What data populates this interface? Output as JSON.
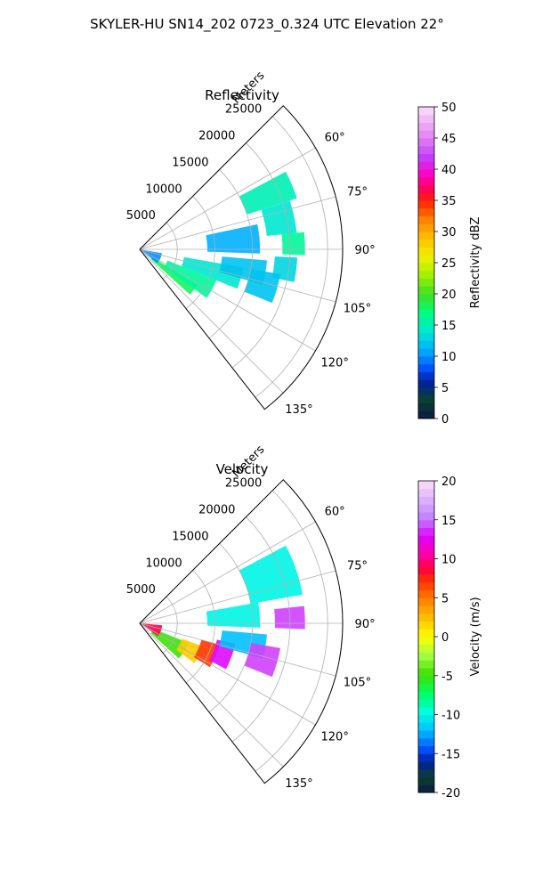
{
  "figure": {
    "suptitle": "SKYLER-HU  SN14_202  0723_0.324 UTC Elevation 22°"
  },
  "chart_data": [
    {
      "type": "polar-ppi",
      "title": "Reflectivity",
      "range_label": "Meters",
      "r_ticks": [
        5000,
        10000,
        15000,
        20000,
        25000
      ],
      "r_max": 27000,
      "theta_range_deg": [
        45,
        142
      ],
      "theta_ticks": [
        "60°",
        "75°",
        "90°",
        "105°",
        "120°",
        "135°"
      ],
      "theta_tick_values": [
        60,
        75,
        90,
        105,
        120,
        135
      ],
      "colorbar": {
        "label": "Reflectivity dBZ",
        "min": 0,
        "max": 50,
        "ticks": [
          0,
          5,
          10,
          15,
          20,
          25,
          30,
          35,
          40,
          45,
          50
        ]
      },
      "echo_regions": [
        {
          "az": [
            122,
            132
          ],
          "r": [
            2000,
            9000
          ],
          "value": 18
        },
        {
          "az": [
            112,
            126
          ],
          "r": [
            4000,
            11000
          ],
          "value": 16
        },
        {
          "az": [
            100,
            112
          ],
          "r": [
            6000,
            14000
          ],
          "value": 14
        },
        {
          "az": [
            95,
            106
          ],
          "r": [
            11000,
            17000
          ],
          "value": 12
        },
        {
          "az": [
            78,
            92
          ],
          "r": [
            9000,
            16000
          ],
          "value": 11
        },
        {
          "az": [
            62,
            72
          ],
          "r": [
            15000,
            22000
          ],
          "value": 15
        },
        {
          "az": [
            72,
            84
          ],
          "r": [
            17000,
            21000
          ],
          "value": 14
        },
        {
          "az": [
            84,
            92
          ],
          "r": [
            19000,
            22000
          ],
          "value": 16
        },
        {
          "az": [
            93,
            102
          ],
          "r": [
            18000,
            21000
          ],
          "value": 13
        },
        {
          "az": [
            100,
            112
          ],
          "r": [
            15000,
            19000
          ],
          "value": 12
        },
        {
          "az": [
            100,
            128
          ],
          "r": [
            0,
            3000
          ],
          "value": 10
        }
      ]
    },
    {
      "type": "polar-ppi",
      "title": "Velocity",
      "range_label": "Meters",
      "r_ticks": [
        5000,
        10000,
        15000,
        20000,
        25000
      ],
      "r_max": 27000,
      "theta_range_deg": [
        45,
        142
      ],
      "theta_ticks": [
        "60°",
        "75°",
        "90°",
        "105°",
        "120°",
        "135°"
      ],
      "theta_tick_values": [
        60,
        75,
        90,
        105,
        120,
        135
      ],
      "colorbar": {
        "label": "Velocity (m/s)",
        "min": -20,
        "max": 20,
        "ticks": [
          -20,
          -15,
          -10,
          -5,
          0,
          5,
          10,
          15,
          20
        ]
      },
      "echo_regions": [
        {
          "az": [
            112,
            132
          ],
          "r": [
            2000,
            7000
          ],
          "value": -5
        },
        {
          "az": [
            110,
            126
          ],
          "r": [
            6000,
            9000
          ],
          "value": 2
        },
        {
          "az": [
            105,
            122
          ],
          "r": [
            8500,
            11000
          ],
          "value": 7
        },
        {
          "az": [
            102,
            118
          ],
          "r": [
            10500,
            13000
          ],
          "value": 13
        },
        {
          "az": [
            95,
            106
          ],
          "r": [
            11000,
            17000
          ],
          "value": -12
        },
        {
          "az": [
            80,
            92
          ],
          "r": [
            9000,
            16000
          ],
          "value": -10
        },
        {
          "az": [
            62,
            80
          ],
          "r": [
            15000,
            22000
          ],
          "value": -10
        },
        {
          "az": [
            84,
            92
          ],
          "r": [
            18000,
            22000
          ],
          "value": 14
        },
        {
          "az": [
            100,
            112
          ],
          "r": [
            15000,
            19000
          ],
          "value": 14
        },
        {
          "az": [
            95,
            125
          ],
          "r": [
            0,
            3000
          ],
          "value": 9
        }
      ]
    }
  ]
}
